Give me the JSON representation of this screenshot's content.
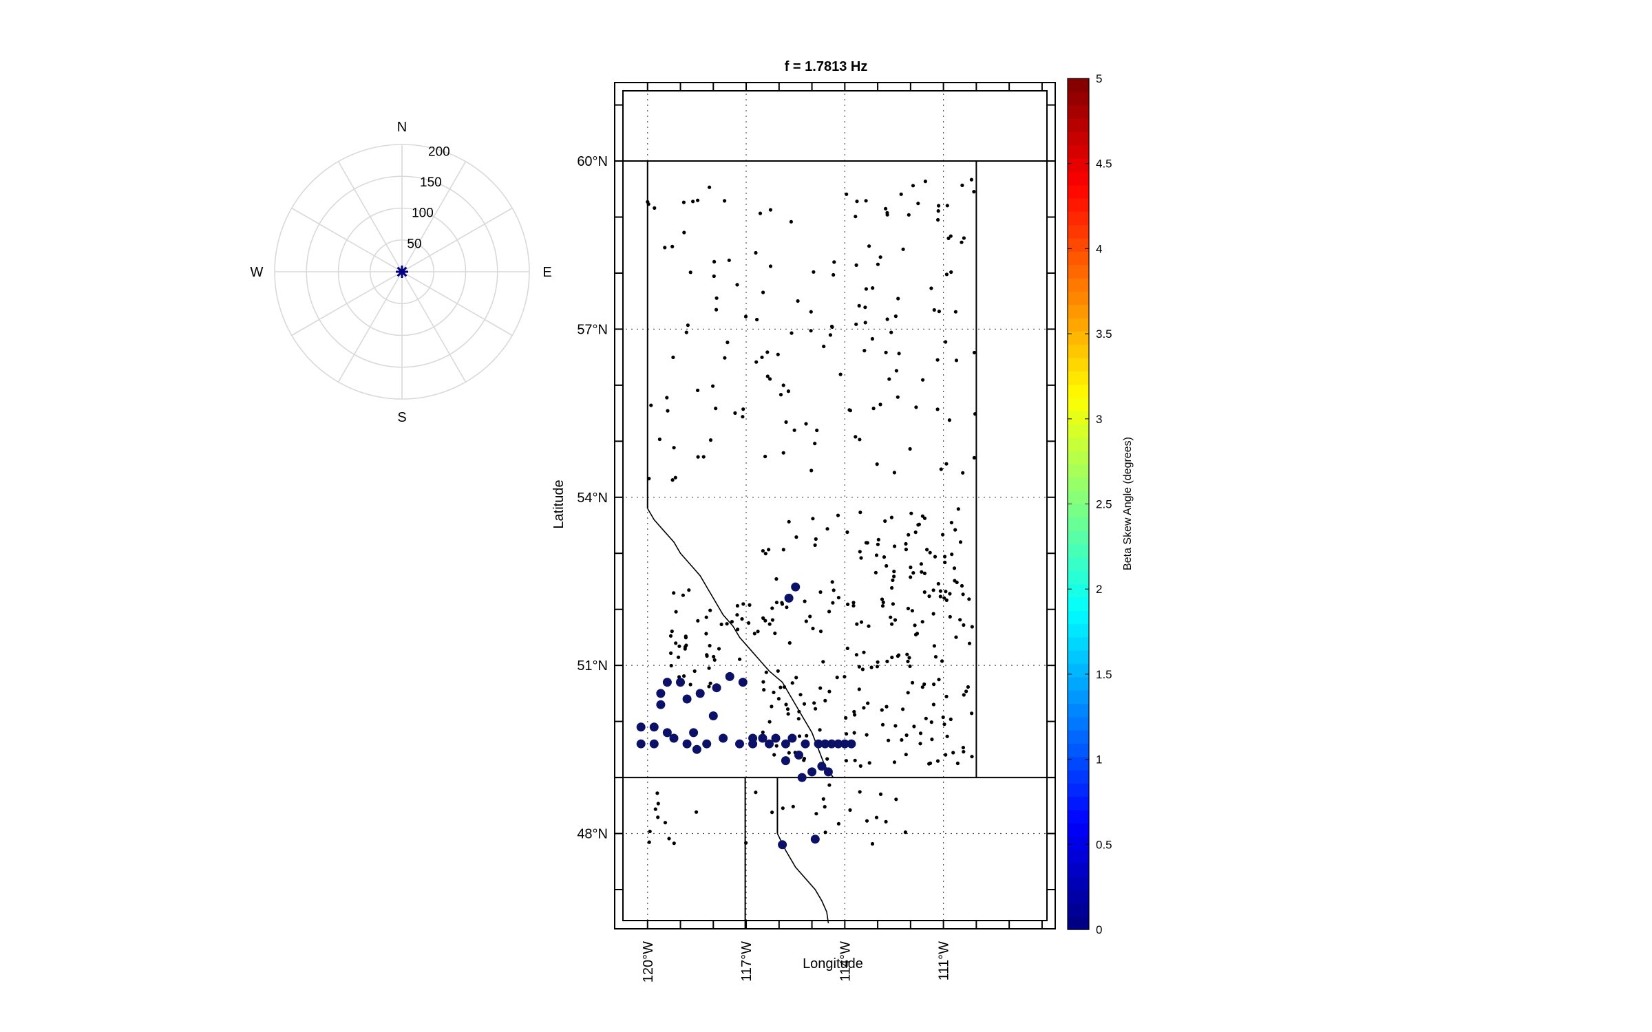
{
  "figure": {
    "title": "f = 1.7813 Hz",
    "colors": {
      "station": "#000000",
      "highlight": "#0b1166",
      "frame": "#000000"
    }
  },
  "polar": {
    "directions": [
      "N",
      "E",
      "S",
      "W"
    ],
    "radial_ticks": [
      "50",
      "100",
      "150",
      "200"
    ],
    "radial_max": 200,
    "marker": "asterisk-icon",
    "marker_color": "#000080"
  },
  "map": {
    "xlabel": "Longitude",
    "ylabel": "Latitude",
    "lat_range": [
      46.3,
      61.4
    ],
    "lon_range": [
      -121.0,
      -107.6
    ],
    "lat_ticks": [
      {
        "value": 60,
        "label": "60°N"
      },
      {
        "value": 57,
        "label": "57°N"
      },
      {
        "value": 54,
        "label": "54°N"
      },
      {
        "value": 51,
        "label": "51°N"
      },
      {
        "value": 48,
        "label": "48°N"
      }
    ],
    "lon_ticks": [
      {
        "value": -120,
        "label": "120°W"
      },
      {
        "value": -117,
        "label": "117°W"
      },
      {
        "value": -114,
        "label": "114°W"
      },
      {
        "value": -111,
        "label": "111°W"
      }
    ]
  },
  "colorbar": {
    "label": "Beta Skew Angle (degrees)",
    "min": 0,
    "max": 5,
    "tick_labels": [
      "0",
      "0.5",
      "1",
      "1.5",
      "2",
      "2.5",
      "3",
      "3.5",
      "4",
      "4.5",
      "5"
    ],
    "colormap": "jet"
  },
  "chart_data": {
    "type": "scatter",
    "title": "f = 1.7813 Hz",
    "xlabel": "Longitude",
    "ylabel": "Latitude",
    "xlim": [
      -121.0,
      -107.6
    ],
    "ylim": [
      46.3,
      61.4
    ],
    "highlighted_stations": [
      [
        -120.2,
        49.6
      ],
      [
        -120.2,
        49.9
      ],
      [
        -119.8,
        49.6
      ],
      [
        -119.8,
        49.9
      ],
      [
        -119.6,
        50.3
      ],
      [
        -119.6,
        50.5
      ],
      [
        -119.4,
        49.8
      ],
      [
        -119.4,
        50.7
      ],
      [
        -119.0,
        50.7
      ],
      [
        -119.2,
        49.7
      ],
      [
        -118.8,
        49.6
      ],
      [
        -118.8,
        50.4
      ],
      [
        -118.6,
        49.8
      ],
      [
        -118.5,
        49.5
      ],
      [
        -118.4,
        50.5
      ],
      [
        -118.2,
        49.6
      ],
      [
        -117.9,
        50.6
      ],
      [
        -118.0,
        50.1
      ],
      [
        -117.7,
        49.7
      ],
      [
        -117.5,
        50.8
      ],
      [
        -117.1,
        50.7
      ],
      [
        -117.2,
        49.6
      ],
      [
        -116.8,
        49.7
      ],
      [
        -116.8,
        49.6
      ],
      [
        -116.5,
        49.7
      ],
      [
        -116.3,
        49.6
      ],
      [
        -116.1,
        49.7
      ],
      [
        -115.8,
        49.6
      ],
      [
        -115.6,
        49.7
      ],
      [
        -115.4,
        49.4
      ],
      [
        -115.2,
        49.6
      ],
      [
        -115.0,
        49.1
      ],
      [
        -114.8,
        49.6
      ],
      [
        -114.6,
        49.6
      ],
      [
        -114.4,
        49.6
      ],
      [
        -114.2,
        49.6
      ],
      [
        -114.0,
        49.6
      ],
      [
        -113.8,
        49.6
      ],
      [
        -115.7,
        52.2
      ],
      [
        -115.5,
        52.4
      ],
      [
        -115.8,
        49.3
      ],
      [
        -115.3,
        49.0
      ],
      [
        -114.7,
        49.2
      ],
      [
        -114.5,
        49.1
      ],
      [
        -114.9,
        47.9
      ],
      [
        -115.9,
        47.8
      ]
    ],
    "stations_count": 470,
    "color_range": [
      0,
      5
    ]
  }
}
